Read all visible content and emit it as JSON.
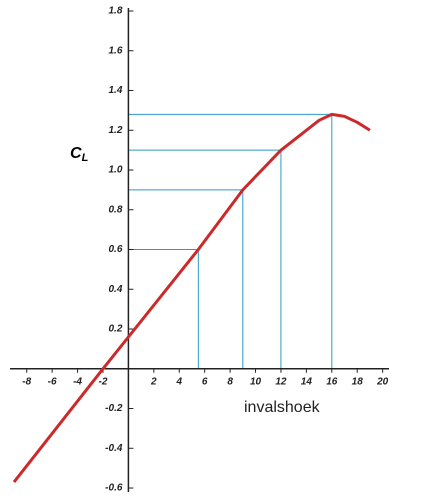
{
  "chart_data": {
    "type": "line",
    "ylabel": {
      "main": "C",
      "sub": "L"
    },
    "xlabel": "invalshoek",
    "x": [
      -9,
      -2,
      5.5,
      9,
      12,
      14,
      15,
      16,
      17,
      18,
      19
    ],
    "series": [
      {
        "color": "#cc2a2a",
        "values": [
          -0.57,
          0,
          0.6,
          0.9,
          1.1,
          1.2,
          1.25,
          1.28,
          1.27,
          1.24,
          1.2
        ]
      }
    ],
    "reference_points": {
      "color": "#2a9ac8",
      "x": [
        5.5,
        9,
        12,
        16
      ],
      "y": [
        0.6,
        0.9,
        1.1,
        1.28
      ]
    },
    "xlim": [
      -9,
      20.5
    ],
    "ylim": [
      -0.62,
      1.8
    ],
    "xticks": [
      -8,
      -6,
      -4,
      -2,
      2,
      4,
      6,
      8,
      10,
      12,
      14,
      16,
      18,
      20
    ],
    "yticks": [
      -0.6,
      -0.4,
      -0.2,
      0.2,
      0.4,
      0.6,
      0.8,
      {
        "value": 1,
        "label": "1.0"
      },
      1.2,
      1.4,
      1.6,
      1.8
    ]
  }
}
